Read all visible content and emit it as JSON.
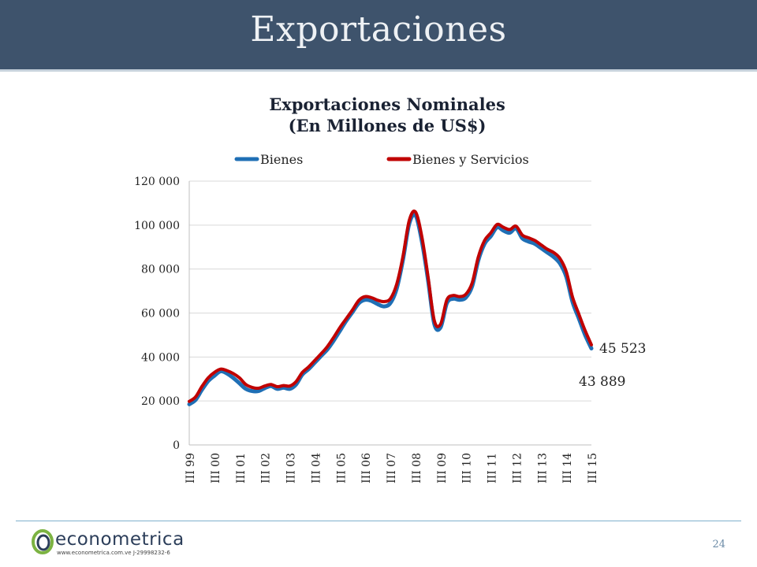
{
  "slide": {
    "title": "Exportaciones",
    "page_number": "24",
    "logo_text": "econometrica",
    "logo_url": "www.econometrica.com.ve   J-29998232-6"
  },
  "colors": {
    "header_bg": "#3e536c",
    "bienes": "#1f6fb5",
    "bienes_y_servicios": "#c00000",
    "accent_line": "#7fb0cd"
  },
  "chart_data": {
    "type": "line",
    "title": "Exportaciones Nominales",
    "subtitle": "(En Millones de US$)",
    "legend_position": "top",
    "grid": true,
    "ylim": [
      0,
      120000
    ],
    "y_ticks": [
      "0",
      "20 000",
      "40 000",
      "60 000",
      "80 000",
      "100 000",
      "120 000"
    ],
    "x_tick_labels": [
      "III 99",
      "III 00",
      "III 01",
      "III 02",
      "III 03",
      "III 04",
      "III 05",
      "III 06",
      "III 07",
      "III 08",
      "III 09",
      "III 10",
      "III 11",
      "III 12",
      "III 13",
      "III 14",
      "III 15"
    ],
    "x": [
      "III 99",
      "IV 99",
      "I 00",
      "II 00",
      "III 00",
      "IV 00",
      "I 01",
      "II 01",
      "III 01",
      "IV 01",
      "I 02",
      "II 02",
      "III 02",
      "IV 02",
      "I 03",
      "II 03",
      "III 03",
      "IV 03",
      "I 04",
      "II 04",
      "III 04",
      "IV 04",
      "I 05",
      "II 05",
      "III 05",
      "IV 05",
      "I 06",
      "II 06",
      "III 06",
      "IV 06",
      "I 07",
      "II 07",
      "III 07",
      "IV 07",
      "I 08",
      "II 08",
      "III 08",
      "IV 08",
      "I 09",
      "II 09",
      "III 09",
      "IV 09",
      "I 10",
      "II 10",
      "III 10",
      "IV 10",
      "I 11",
      "II 11",
      "III 11",
      "IV 11",
      "I 12",
      "II 12",
      "III 12",
      "IV 12",
      "I 13",
      "II 13",
      "III 13",
      "IV 13",
      "I 14",
      "II 14",
      "III 14",
      "IV 14",
      "I 15",
      "II 15",
      "III 15"
    ],
    "series": [
      {
        "name": "Bienes",
        "values": [
          18500,
          20500,
          25000,
          29000,
          31500,
          33500,
          32500,
          30500,
          28000,
          25500,
          24500,
          24500,
          25800,
          26800,
          25500,
          26000,
          25500,
          27500,
          32000,
          34500,
          37500,
          40500,
          43500,
          47500,
          52000,
          56500,
          60500,
          64500,
          66000,
          65500,
          64000,
          63000,
          64500,
          71000,
          84000,
          100500,
          104500,
          93000,
          75000,
          55000,
          53500,
          64500,
          66500,
          66000,
          67000,
          72000,
          84000,
          91500,
          95000,
          99000,
          97500,
          96500,
          98500,
          94000,
          92500,
          91500,
          89500,
          87500,
          85500,
          82500,
          76500,
          65000,
          57500,
          50000,
          43889
        ]
      },
      {
        "name": "Bienes y Servicios",
        "values": [
          19800,
          21800,
          26500,
          30500,
          33000,
          34500,
          33800,
          32500,
          30500,
          27500,
          26200,
          25800,
          26800,
          27500,
          26500,
          27000,
          26800,
          28800,
          33000,
          35500,
          38500,
          41500,
          44800,
          49000,
          53500,
          57500,
          61500,
          65800,
          67500,
          67000,
          65800,
          65200,
          66500,
          73000,
          85500,
          102000,
          106000,
          95000,
          76500,
          56500,
          55000,
          66000,
          68000,
          67500,
          68500,
          73500,
          85500,
          93000,
          96500,
          100300,
          99000,
          98000,
          99500,
          95500,
          94200,
          93000,
          91000,
          89000,
          87500,
          84800,
          78800,
          67200,
          59500,
          52000,
          45523
        ]
      }
    ],
    "annotations": [
      {
        "text": "45 523",
        "series": "Bienes y Servicios",
        "x": "III 15",
        "y": 45523
      },
      {
        "text": "43 889",
        "series": "Bienes",
        "x": "III 15",
        "y": 43889
      }
    ]
  }
}
